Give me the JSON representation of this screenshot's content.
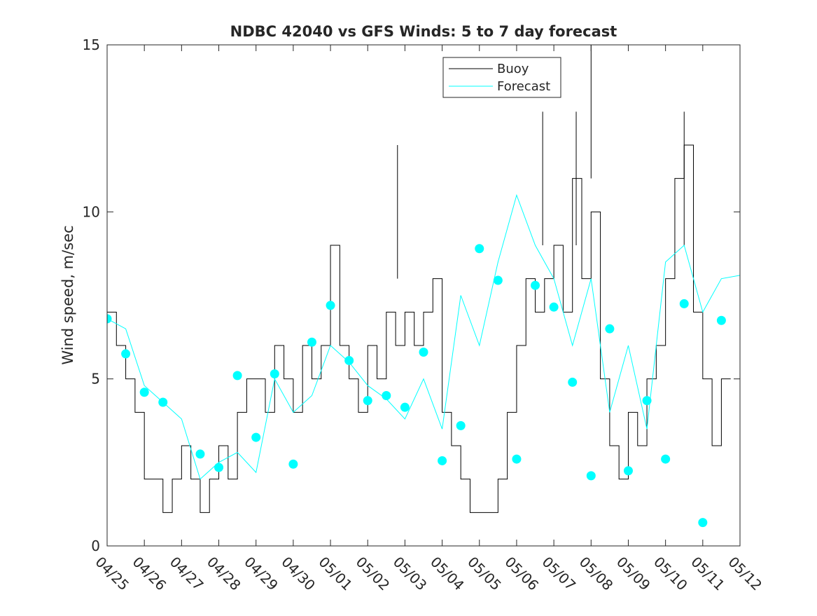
{
  "chart_data": {
    "type": "line",
    "title": "NDBC 42040 vs GFS Winds: 5 to 7 day forecast",
    "xlabel": "",
    "ylabel": "Wind speed, m/sec",
    "xlim": [
      0,
      17
    ],
    "ylim": [
      0,
      15
    ],
    "x_tick_labels": [
      "04/25",
      "04/26",
      "04/27",
      "04/28",
      "04/29",
      "04/30",
      "05/01",
      "05/02",
      "05/03",
      "05/04",
      "05/05",
      "05/06",
      "05/07",
      "05/08",
      "05/09",
      "05/10",
      "05/11",
      "05/12"
    ],
    "y_ticks": [
      0,
      5,
      10,
      15
    ],
    "grid": false,
    "legend_position": "top-center",
    "colors": {
      "buoy": "#000000",
      "forecast": "#00ffff",
      "axis": "#262626"
    },
    "series": [
      {
        "name": "Buoy",
        "style": "step-line",
        "color": "#000000",
        "x": [
          0.0,
          0.25,
          0.5,
          0.75,
          1.0,
          1.25,
          1.5,
          1.75,
          2.0,
          2.25,
          2.5,
          2.75,
          3.0,
          3.25,
          3.5,
          3.75,
          4.0,
          4.25,
          4.5,
          4.75,
          5.0,
          5.25,
          5.5,
          5.75,
          6.0,
          6.25,
          6.5,
          6.75,
          7.0,
          7.25,
          7.5,
          7.75,
          8.0,
          8.25,
          8.5,
          8.75,
          9.0,
          9.25,
          9.5,
          9.75,
          10.0,
          10.25,
          10.5,
          10.75,
          11.0,
          11.25,
          11.5,
          11.75,
          12.0,
          12.25,
          12.5,
          12.75,
          13.0,
          13.25,
          13.5,
          13.75,
          14.0,
          14.25,
          14.5,
          14.75,
          15.0,
          15.25,
          15.5,
          15.75,
          16.0,
          16.25,
          16.5
        ],
        "values": [
          7,
          6,
          5,
          4,
          2,
          2,
          1,
          2,
          3,
          2,
          1,
          2,
          3,
          2,
          4,
          5,
          5,
          4,
          6,
          5,
          4,
          6,
          5,
          6,
          9,
          6,
          5,
          4,
          6,
          5,
          7,
          6,
          7,
          6,
          7,
          8,
          4,
          3,
          2,
          1,
          1,
          1,
          2,
          4,
          6,
          8,
          7,
          8,
          9,
          7,
          11,
          8,
          10,
          5,
          3,
          2,
          4,
          3,
          5,
          6,
          8,
          11,
          12,
          7,
          5,
          3,
          5
        ],
        "peaks": [
          {
            "x": 7.8,
            "y": 12
          },
          {
            "x": 11.7,
            "y": 13
          },
          {
            "x": 13.0,
            "y": 15
          },
          {
            "x": 12.6,
            "y": 13
          },
          {
            "x": 15.5,
            "y": 13
          }
        ]
      },
      {
        "name": "Forecast",
        "style": "line",
        "color": "#00ffff",
        "x": [
          0.0,
          0.5,
          1.0,
          1.5,
          2.0,
          2.5,
          3.0,
          3.5,
          4.0,
          4.5,
          5.0,
          5.5,
          6.0,
          6.5,
          7.0,
          7.5,
          8.0,
          8.5,
          9.0,
          9.5,
          10.0,
          10.5,
          11.0,
          11.5,
          12.0,
          12.5,
          13.0,
          13.5,
          14.0,
          14.5,
          15.0,
          15.5,
          16.0,
          16.5,
          17.0
        ],
        "values": [
          6.8,
          6.5,
          4.8,
          4.3,
          3.8,
          2.0,
          2.5,
          2.8,
          2.2,
          5.0,
          4.0,
          4.5,
          6.0,
          5.5,
          4.8,
          4.4,
          3.8,
          5.0,
          3.5,
          7.5,
          6.0,
          8.5,
          10.5,
          9.0,
          8.0,
          6.0,
          8.0,
          4.0,
          6.0,
          3.5,
          8.5,
          9.0,
          7.0,
          8.0,
          8.1
        ]
      },
      {
        "name": "",
        "style": "markers",
        "color": "#00ffff",
        "x": [
          0.0,
          0.5,
          1.0,
          1.5,
          2.5,
          3.0,
          3.5,
          4.0,
          4.5,
          5.0,
          5.5,
          6.0,
          6.5,
          7.0,
          7.5,
          8.0,
          8.5,
          9.0,
          9.5,
          10.0,
          10.5,
          11.0,
          11.5,
          12.0,
          12.5,
          13.0,
          13.5,
          14.0,
          14.5,
          15.0,
          15.5,
          16.0,
          16.5
        ],
        "values": [
          6.8,
          5.75,
          4.6,
          4.3,
          2.75,
          2.35,
          5.1,
          3.25,
          5.15,
          2.45,
          6.1,
          7.2,
          5.55,
          4.35,
          4.5,
          4.15,
          5.8,
          2.55,
          3.6,
          8.9,
          7.95,
          2.6,
          7.8,
          7.15,
          4.9,
          2.1,
          6.5,
          2.25,
          4.35,
          2.6,
          7.25,
          0.7,
          6.75
        ]
      }
    ]
  }
}
